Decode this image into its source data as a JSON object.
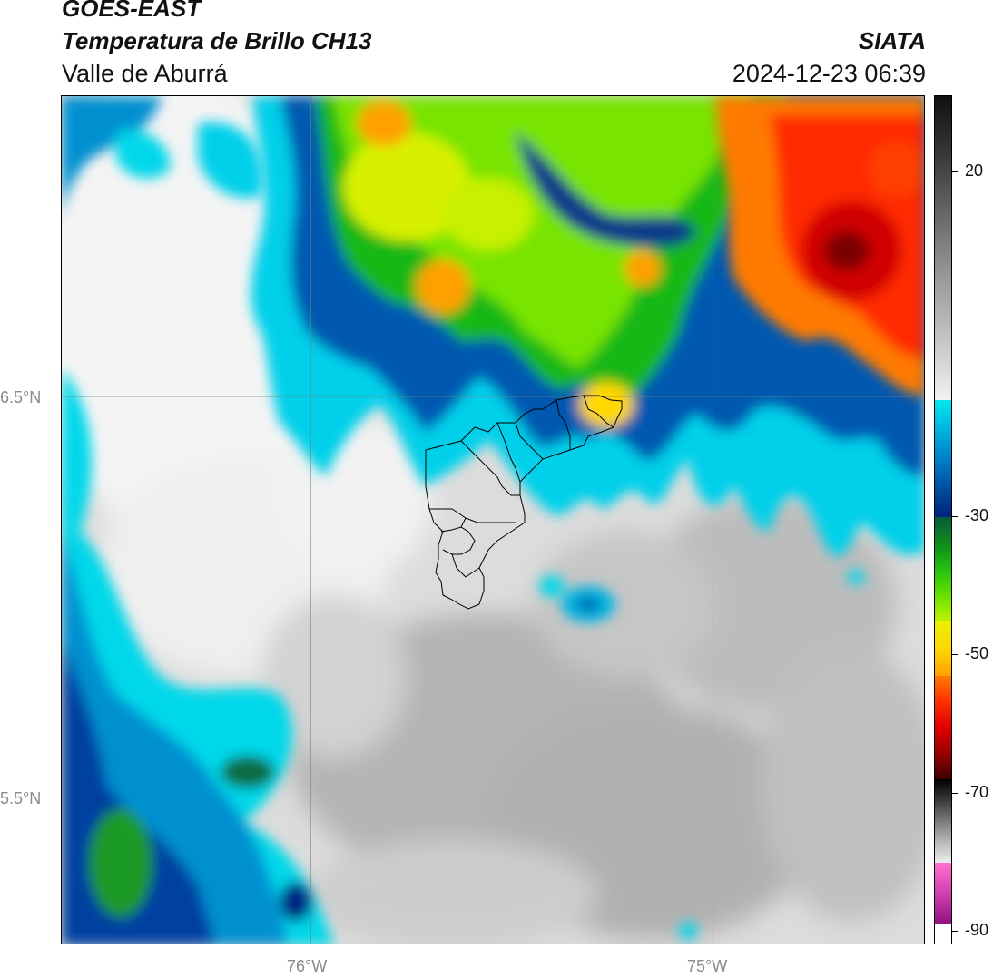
{
  "header": {
    "satellite": "GOES-EAST",
    "product": "Temperatura de Brillo CH13",
    "region": "Valle de Aburrá",
    "organization": "SIATA",
    "timestamp": "2024-12-23 06:39"
  },
  "map": {
    "lon_range": [
      -76.62,
      -74.47
    ],
    "lat_range": [
      5.13,
      7.25
    ],
    "gridlines": {
      "lon": [
        -76,
        -75
      ],
      "lat": [
        6.5,
        5.5
      ],
      "lon_labels": [
        "76°W",
        "75°W"
      ],
      "lat_labels": [
        "6.5°N",
        "5.5°N"
      ]
    },
    "boundary": "Valle de Aburrá municipalities outline",
    "field": "brightness temperature (°C)"
  },
  "colorbar": {
    "range": [
      -92,
      31
    ],
    "ticks": [
      {
        "value": 20,
        "label": "20"
      },
      {
        "value": -30,
        "label": "-30"
      },
      {
        "value": -50,
        "label": "-50"
      },
      {
        "value": -70,
        "label": "-70"
      },
      {
        "value": -90,
        "label": "-90"
      }
    ],
    "segments": [
      {
        "from": 31,
        "to": -13,
        "gradient": [
          "#101010",
          "#3a3a3a",
          "#6a6a6a",
          "#9a9a9a",
          "#c4c4c4",
          "#f2f2f2"
        ]
      },
      {
        "from": -13,
        "to": -30,
        "gradient": [
          "#00e8f0",
          "#00b4e0",
          "#0080c8",
          "#0050a0",
          "#002080"
        ]
      },
      {
        "from": -30,
        "to": -45,
        "gradient": [
          "#0a5a3a",
          "#0f8a1c",
          "#22c010",
          "#66e000",
          "#bff000"
        ]
      },
      {
        "from": -45,
        "to": -53,
        "gradient": [
          "#e8f000",
          "#ffd800",
          "#ffa000"
        ]
      },
      {
        "from": -53,
        "to": -68,
        "gradient": [
          "#ff7a00",
          "#ff3000",
          "#e00000",
          "#9a0000",
          "#3a0000"
        ]
      },
      {
        "from": -68,
        "to": -80,
        "gradient": [
          "#000000",
          "#3a3a3a",
          "#7a7a7a",
          "#b8b8b8",
          "#eeeeee"
        ]
      },
      {
        "from": -80,
        "to": -89,
        "gradient": [
          "#ff70d0",
          "#d040b0",
          "#901080"
        ]
      },
      {
        "from": -89,
        "to": -92,
        "gradient": [
          "#ffffff",
          "#ffffff"
        ]
      }
    ]
  }
}
